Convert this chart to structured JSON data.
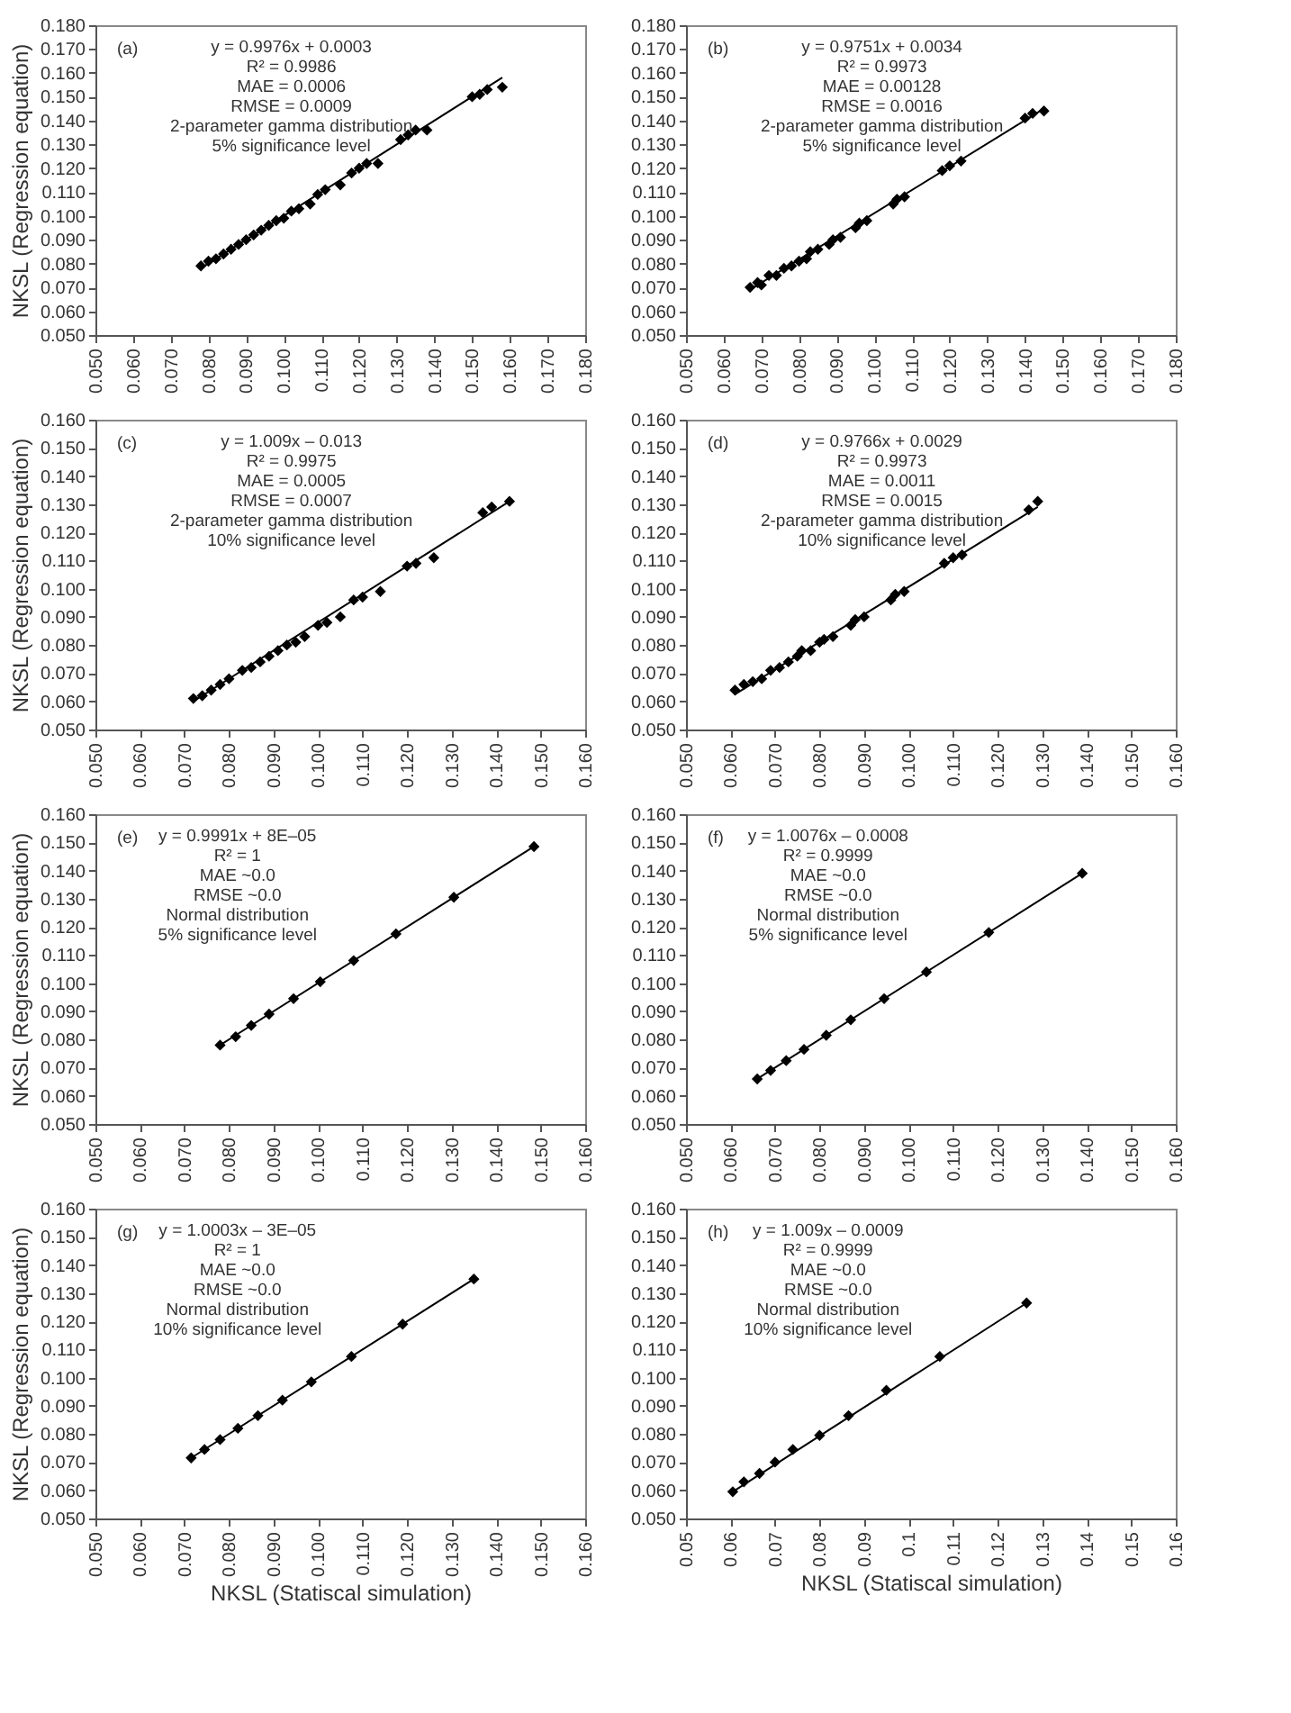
{
  "chart_data": [
    {
      "type": "scatter",
      "ylabel": "NKSL (Regression equation)",
      "annotations": [
        "(a)",
        "y = 0.9976x + 0.0003",
        "R² = 0.9986",
        "MAE = 0.0006",
        "RMSE = 0.0009",
        "2-parameter gamma distribution",
        "5% significance level"
      ],
      "xlim": [
        0.05,
        0.18
      ],
      "ylim": [
        0.05,
        0.18
      ],
      "xticks": [
        {
          "value": 0.05,
          "label": "0.050"
        },
        {
          "value": 0.06,
          "label": "0.060"
        },
        {
          "value": 0.07,
          "label": "0.070"
        },
        {
          "value": 0.08,
          "label": "0.080"
        },
        {
          "value": 0.09,
          "label": "0.090"
        },
        {
          "value": 0.1,
          "label": "0.100"
        },
        {
          "value": 0.11,
          "label": "0.110"
        },
        {
          "value": 0.12,
          "label": "0.120"
        },
        {
          "value": 0.13,
          "label": "0.130"
        },
        {
          "value": 0.14,
          "label": "0.140"
        },
        {
          "value": 0.15,
          "label": "0.150"
        },
        {
          "value": 0.16,
          "label": "0.160"
        },
        {
          "value": 0.17,
          "label": "0.170"
        },
        {
          "value": 0.18,
          "label": "0.180"
        }
      ],
      "yticks": [
        {
          "value": 0.05,
          "label": "0.050"
        },
        {
          "value": 0.06,
          "label": "0.060"
        },
        {
          "value": 0.07,
          "label": "0.070"
        },
        {
          "value": 0.08,
          "label": "0.080"
        },
        {
          "value": 0.09,
          "label": "0.090"
        },
        {
          "value": 0.1,
          "label": "0.100"
        },
        {
          "value": 0.11,
          "label": "0.110"
        },
        {
          "value": 0.12,
          "label": "0.120"
        },
        {
          "value": 0.13,
          "label": "0.130"
        },
        {
          "value": 0.14,
          "label": "0.140"
        },
        {
          "value": 0.15,
          "label": "0.150"
        },
        {
          "value": 0.16,
          "label": "0.160"
        },
        {
          "value": 0.17,
          "label": "0.170"
        },
        {
          "value": 0.18,
          "label": "0.180"
        }
      ],
      "grid": false,
      "series": [
        {
          "type": "scatter",
          "marker": "diamond",
          "color": "#000000",
          "x": [
            0.078,
            0.08,
            0.082,
            0.084,
            0.086,
            0.088,
            0.09,
            0.092,
            0.094,
            0.096,
            0.098,
            0.1,
            0.102,
            0.104,
            0.107,
            0.109,
            0.111,
            0.115,
            0.118,
            0.12,
            0.122,
            0.125,
            0.131,
            0.133,
            0.135,
            0.138,
            0.15,
            0.152,
            0.154,
            0.158
          ],
          "values": [
            0.079,
            0.081,
            0.082,
            0.084,
            0.086,
            0.088,
            0.09,
            0.092,
            0.094,
            0.096,
            0.098,
            0.099,
            0.102,
            0.103,
            0.105,
            0.109,
            0.111,
            0.113,
            0.118,
            0.12,
            0.122,
            0.122,
            0.132,
            0.134,
            0.136,
            0.136,
            0.15,
            0.151,
            0.153,
            0.154
          ]
        },
        {
          "type": "line",
          "line_style": "solid",
          "color": "#000000",
          "x": [
            0.078,
            0.158
          ],
          "values": [
            0.078,
            0.158
          ]
        }
      ]
    },
    {
      "type": "scatter",
      "annotations": [
        "(b)",
        "y = 0.9751x + 0.0034",
        "R² = 0.9973",
        "MAE = 0.00128",
        "RMSE = 0.0016",
        "2-parameter gamma distribution",
        "5% significance level"
      ],
      "xlim": [
        0.05,
        0.18
      ],
      "ylim": [
        0.05,
        0.18
      ],
      "xticks": [
        {
          "value": 0.05,
          "label": "0.050"
        },
        {
          "value": 0.06,
          "label": "0.060"
        },
        {
          "value": 0.07,
          "label": "0.070"
        },
        {
          "value": 0.08,
          "label": "0.080"
        },
        {
          "value": 0.09,
          "label": "0.090"
        },
        {
          "value": 0.1,
          "label": "0.100"
        },
        {
          "value": 0.11,
          "label": "0.110"
        },
        {
          "value": 0.12,
          "label": "0.120"
        },
        {
          "value": 0.13,
          "label": "0.130"
        },
        {
          "value": 0.14,
          "label": "0.140"
        },
        {
          "value": 0.15,
          "label": "0.150"
        },
        {
          "value": 0.16,
          "label": "0.160"
        },
        {
          "value": 0.17,
          "label": "0.170"
        },
        {
          "value": 0.18,
          "label": "0.180"
        }
      ],
      "yticks": [
        {
          "value": 0.05,
          "label": "0.050"
        },
        {
          "value": 0.06,
          "label": "0.060"
        },
        {
          "value": 0.07,
          "label": "0.070"
        },
        {
          "value": 0.08,
          "label": "0.080"
        },
        {
          "value": 0.09,
          "label": "0.090"
        },
        {
          "value": 0.1,
          "label": "0.100"
        },
        {
          "value": 0.11,
          "label": "0.110"
        },
        {
          "value": 0.12,
          "label": "0.120"
        },
        {
          "value": 0.13,
          "label": "0.130"
        },
        {
          "value": 0.14,
          "label": "0.140"
        },
        {
          "value": 0.15,
          "label": "0.150"
        },
        {
          "value": 0.16,
          "label": "0.160"
        },
        {
          "value": 0.17,
          "label": "0.170"
        },
        {
          "value": 0.18,
          "label": "0.180"
        }
      ],
      "grid": false,
      "series": [
        {
          "type": "scatter",
          "marker": "diamond",
          "color": "#000000",
          "x": [
            0.067,
            0.069,
            0.07,
            0.072,
            0.074,
            0.076,
            0.078,
            0.08,
            0.082,
            0.083,
            0.085,
            0.088,
            0.089,
            0.091,
            0.095,
            0.096,
            0.098,
            0.105,
            0.106,
            0.108,
            0.118,
            0.12,
            0.123,
            0.14,
            0.142,
            0.145
          ],
          "values": [
            0.07,
            0.072,
            0.071,
            0.075,
            0.075,
            0.078,
            0.079,
            0.081,
            0.082,
            0.085,
            0.086,
            0.088,
            0.09,
            0.091,
            0.095,
            0.097,
            0.098,
            0.105,
            0.107,
            0.108,
            0.119,
            0.121,
            0.123,
            0.141,
            0.143,
            0.144
          ]
        },
        {
          "type": "line",
          "line_style": "solid",
          "color": "#000000",
          "x": [
            0.067,
            0.145
          ],
          "values": [
            0.069,
            0.145
          ]
        }
      ]
    },
    {
      "type": "scatter",
      "ylabel": "NKSL (Regression equation)",
      "annotations": [
        "(c)",
        "y = 1.009x – 0.013",
        "R² = 0.9975",
        "MAE = 0.0005",
        "RMSE = 0.0007",
        "2-parameter gamma distribution",
        "10% significance level"
      ],
      "xlim": [
        0.05,
        0.16
      ],
      "ylim": [
        0.05,
        0.16
      ],
      "xticks": [
        {
          "value": 0.05,
          "label": "0.050"
        },
        {
          "value": 0.06,
          "label": "0.060"
        },
        {
          "value": 0.07,
          "label": "0.070"
        },
        {
          "value": 0.08,
          "label": "0.080"
        },
        {
          "value": 0.09,
          "label": "0.090"
        },
        {
          "value": 0.1,
          "label": "0.100"
        },
        {
          "value": 0.11,
          "label": "0.110"
        },
        {
          "value": 0.12,
          "label": "0.120"
        },
        {
          "value": 0.13,
          "label": "0.130"
        },
        {
          "value": 0.14,
          "label": "0.140"
        },
        {
          "value": 0.15,
          "label": "0.150"
        },
        {
          "value": 0.16,
          "label": "0.160"
        }
      ],
      "yticks": [
        {
          "value": 0.05,
          "label": "0.050"
        },
        {
          "value": 0.06,
          "label": "0.060"
        },
        {
          "value": 0.07,
          "label": "0.070"
        },
        {
          "value": 0.08,
          "label": "0.080"
        },
        {
          "value": 0.09,
          "label": "0.090"
        },
        {
          "value": 0.1,
          "label": "0.100"
        },
        {
          "value": 0.11,
          "label": "0.110"
        },
        {
          "value": 0.12,
          "label": "0.120"
        },
        {
          "value": 0.13,
          "label": "0.130"
        },
        {
          "value": 0.14,
          "label": "0.140"
        },
        {
          "value": 0.15,
          "label": "0.150"
        },
        {
          "value": 0.16,
          "label": "0.160"
        }
      ],
      "grid": false,
      "series": [
        {
          "type": "scatter",
          "marker": "diamond",
          "color": "#000000",
          "x": [
            0.072,
            0.074,
            0.076,
            0.078,
            0.08,
            0.083,
            0.085,
            0.087,
            0.089,
            0.091,
            0.093,
            0.095,
            0.097,
            0.1,
            0.102,
            0.105,
            0.108,
            0.11,
            0.114,
            0.12,
            0.122,
            0.126,
            0.137,
            0.139,
            0.143
          ],
          "values": [
            0.061,
            0.062,
            0.064,
            0.066,
            0.068,
            0.071,
            0.072,
            0.074,
            0.076,
            0.078,
            0.08,
            0.081,
            0.083,
            0.087,
            0.088,
            0.09,
            0.096,
            0.097,
            0.099,
            0.108,
            0.109,
            0.111,
            0.127,
            0.129,
            0.131
          ]
        },
        {
          "type": "line",
          "line_style": "solid",
          "color": "#000000",
          "x": [
            0.072,
            0.143
          ],
          "values": [
            0.06,
            0.131
          ]
        }
      ]
    },
    {
      "type": "scatter",
      "annotations": [
        "(d)",
        "y = 0.9766x + 0.0029",
        "R² = 0.9973",
        "MAE = 0.0011",
        "RMSE = 0.0015",
        "2-parameter gamma distribution",
        "10% significance level"
      ],
      "xlim": [
        0.05,
        0.16
      ],
      "ylim": [
        0.05,
        0.16
      ],
      "xticks": [
        {
          "value": 0.05,
          "label": "0.050"
        },
        {
          "value": 0.06,
          "label": "0.060"
        },
        {
          "value": 0.07,
          "label": "0.070"
        },
        {
          "value": 0.08,
          "label": "0.080"
        },
        {
          "value": 0.09,
          "label": "0.090"
        },
        {
          "value": 0.1,
          "label": "0.100"
        },
        {
          "value": 0.11,
          "label": "0.110"
        },
        {
          "value": 0.12,
          "label": "0.120"
        },
        {
          "value": 0.13,
          "label": "0.130"
        },
        {
          "value": 0.14,
          "label": "0.140"
        },
        {
          "value": 0.15,
          "label": "0.150"
        },
        {
          "value": 0.16,
          "label": "0.160"
        }
      ],
      "yticks": [
        {
          "value": 0.05,
          "label": "0.050"
        },
        {
          "value": 0.06,
          "label": "0.060"
        },
        {
          "value": 0.07,
          "label": "0.070"
        },
        {
          "value": 0.08,
          "label": "0.080"
        },
        {
          "value": 0.09,
          "label": "0.090"
        },
        {
          "value": 0.1,
          "label": "0.100"
        },
        {
          "value": 0.11,
          "label": "0.110"
        },
        {
          "value": 0.12,
          "label": "0.120"
        },
        {
          "value": 0.13,
          "label": "0.130"
        },
        {
          "value": 0.14,
          "label": "0.140"
        },
        {
          "value": 0.15,
          "label": "0.150"
        },
        {
          "value": 0.16,
          "label": "0.160"
        }
      ],
      "grid": false,
      "series": [
        {
          "type": "scatter",
          "marker": "diamond",
          "color": "#000000",
          "x": [
            0.061,
            0.063,
            0.065,
            0.067,
            0.069,
            0.071,
            0.073,
            0.075,
            0.076,
            0.078,
            0.08,
            0.081,
            0.083,
            0.087,
            0.088,
            0.09,
            0.096,
            0.097,
            0.099,
            0.108,
            0.11,
            0.112,
            0.127,
            0.129
          ],
          "values": [
            0.064,
            0.066,
            0.067,
            0.068,
            0.071,
            0.072,
            0.074,
            0.076,
            0.078,
            0.078,
            0.081,
            0.082,
            0.083,
            0.087,
            0.089,
            0.09,
            0.096,
            0.098,
            0.099,
            0.109,
            0.111,
            0.112,
            0.128,
            0.131
          ]
        },
        {
          "type": "line",
          "line_style": "solid",
          "color": "#000000",
          "x": [
            0.061,
            0.129
          ],
          "values": [
            0.0625,
            0.129
          ]
        }
      ]
    },
    {
      "type": "scatter",
      "ylabel": "NKSL (Regression equation)",
      "annotations": [
        "(e)",
        "y = 0.9991x + 8E–05",
        "R² = 1",
        "MAE ~0.0",
        "RMSE ~0.0",
        "Normal distribution",
        "5% significance level"
      ],
      "xlim": [
        0.05,
        0.16
      ],
      "ylim": [
        0.05,
        0.16
      ],
      "xticks": [
        {
          "value": 0.05,
          "label": "0.050"
        },
        {
          "value": 0.06,
          "label": "0.060"
        },
        {
          "value": 0.07,
          "label": "0.070"
        },
        {
          "value": 0.08,
          "label": "0.080"
        },
        {
          "value": 0.09,
          "label": "0.090"
        },
        {
          "value": 0.1,
          "label": "0.100"
        },
        {
          "value": 0.11,
          "label": "0.110"
        },
        {
          "value": 0.12,
          "label": "0.120"
        },
        {
          "value": 0.13,
          "label": "0.130"
        },
        {
          "value": 0.14,
          "label": "0.140"
        },
        {
          "value": 0.15,
          "label": "0.150"
        },
        {
          "value": 0.16,
          "label": "0.160"
        }
      ],
      "yticks": [
        {
          "value": 0.05,
          "label": "0.050"
        },
        {
          "value": 0.06,
          "label": "0.060"
        },
        {
          "value": 0.07,
          "label": "0.070"
        },
        {
          "value": 0.08,
          "label": "0.080"
        },
        {
          "value": 0.09,
          "label": "0.090"
        },
        {
          "value": 0.1,
          "label": "0.100"
        },
        {
          "value": 0.11,
          "label": "0.110"
        },
        {
          "value": 0.12,
          "label": "0.120"
        },
        {
          "value": 0.13,
          "label": "0.130"
        },
        {
          "value": 0.14,
          "label": "0.140"
        },
        {
          "value": 0.15,
          "label": "0.150"
        },
        {
          "value": 0.16,
          "label": "0.160"
        }
      ],
      "grid": false,
      "series": [
        {
          "type": "scatter",
          "marker": "diamond",
          "color": "#000000",
          "x": [
            0.078,
            0.0815,
            0.085,
            0.089,
            0.0945,
            0.1005,
            0.108,
            0.1175,
            0.1305,
            0.1485
          ],
          "values": [
            0.078,
            0.081,
            0.085,
            0.089,
            0.0945,
            0.1005,
            0.108,
            0.1175,
            0.1305,
            0.1485
          ]
        },
        {
          "type": "line",
          "line_style": "solid",
          "color": "#000000",
          "x": [
            0.078,
            0.1485
          ],
          "values": [
            0.078,
            0.1485
          ]
        }
      ]
    },
    {
      "type": "scatter",
      "annotations": [
        "(f)",
        "y = 1.0076x – 0.0008",
        "R² = 0.9999",
        "MAE ~0.0",
        "RMSE ~0.0",
        "Normal distribution",
        "5% significance level"
      ],
      "xlim": [
        0.05,
        0.16
      ],
      "ylim": [
        0.05,
        0.16
      ],
      "xticks": [
        {
          "value": 0.05,
          "label": "0.050"
        },
        {
          "value": 0.06,
          "label": "0.060"
        },
        {
          "value": 0.07,
          "label": "0.070"
        },
        {
          "value": 0.08,
          "label": "0.080"
        },
        {
          "value": 0.09,
          "label": "0.090"
        },
        {
          "value": 0.1,
          "label": "0.100"
        },
        {
          "value": 0.11,
          "label": "0.110"
        },
        {
          "value": 0.12,
          "label": "0.120"
        },
        {
          "value": 0.13,
          "label": "0.130"
        },
        {
          "value": 0.14,
          "label": "0.140"
        },
        {
          "value": 0.15,
          "label": "0.150"
        },
        {
          "value": 0.16,
          "label": "0.160"
        }
      ],
      "yticks": [
        {
          "value": 0.05,
          "label": "0.050"
        },
        {
          "value": 0.06,
          "label": "0.060"
        },
        {
          "value": 0.07,
          "label": "0.070"
        },
        {
          "value": 0.08,
          "label": "0.080"
        },
        {
          "value": 0.09,
          "label": "0.090"
        },
        {
          "value": 0.1,
          "label": "0.100"
        },
        {
          "value": 0.11,
          "label": "0.110"
        },
        {
          "value": 0.12,
          "label": "0.120"
        },
        {
          "value": 0.13,
          "label": "0.130"
        },
        {
          "value": 0.14,
          "label": "0.140"
        },
        {
          "value": 0.15,
          "label": "0.150"
        },
        {
          "value": 0.16,
          "label": "0.160"
        }
      ],
      "grid": false,
      "series": [
        {
          "type": "scatter",
          "marker": "diamond",
          "color": "#000000",
          "x": [
            0.066,
            0.069,
            0.0725,
            0.0765,
            0.0815,
            0.087,
            0.0945,
            0.104,
            0.118,
            0.139
          ],
          "values": [
            0.066,
            0.069,
            0.0725,
            0.0765,
            0.0815,
            0.087,
            0.0945,
            0.104,
            0.118,
            0.139
          ]
        },
        {
          "type": "line",
          "line_style": "solid",
          "color": "#000000",
          "x": [
            0.066,
            0.139
          ],
          "values": [
            0.066,
            0.139
          ]
        }
      ]
    },
    {
      "type": "scatter",
      "xlabel": "NKSL (Statiscal simulation)",
      "ylabel": "NKSL (Regression equation)",
      "annotations": [
        "(g)",
        "y = 1.0003x – 3E–05",
        "R² = 1",
        "MAE ~0.0",
        "RMSE ~0.0",
        "Normal distribution",
        "10% significance level"
      ],
      "xlim": [
        0.05,
        0.16
      ],
      "ylim": [
        0.05,
        0.16
      ],
      "xticks": [
        {
          "value": 0.05,
          "label": "0.050"
        },
        {
          "value": 0.06,
          "label": "0.060"
        },
        {
          "value": 0.07,
          "label": "0.070"
        },
        {
          "value": 0.08,
          "label": "0.080"
        },
        {
          "value": 0.09,
          "label": "0.090"
        },
        {
          "value": 0.1,
          "label": "0.100"
        },
        {
          "value": 0.11,
          "label": "0.110"
        },
        {
          "value": 0.12,
          "label": "0.120"
        },
        {
          "value": 0.13,
          "label": "0.130"
        },
        {
          "value": 0.14,
          "label": "0.140"
        },
        {
          "value": 0.15,
          "label": "0.150"
        },
        {
          "value": 0.16,
          "label": "0.160"
        }
      ],
      "yticks": [
        {
          "value": 0.05,
          "label": "0.050"
        },
        {
          "value": 0.06,
          "label": "0.060"
        },
        {
          "value": 0.07,
          "label": "0.070"
        },
        {
          "value": 0.08,
          "label": "0.080"
        },
        {
          "value": 0.09,
          "label": "0.090"
        },
        {
          "value": 0.1,
          "label": "0.100"
        },
        {
          "value": 0.11,
          "label": "0.110"
        },
        {
          "value": 0.12,
          "label": "0.120"
        },
        {
          "value": 0.13,
          "label": "0.130"
        },
        {
          "value": 0.14,
          "label": "0.140"
        },
        {
          "value": 0.15,
          "label": "0.150"
        },
        {
          "value": 0.16,
          "label": "0.160"
        }
      ],
      "grid": false,
      "series": [
        {
          "type": "scatter",
          "marker": "diamond",
          "color": "#000000",
          "x": [
            0.0715,
            0.0745,
            0.078,
            0.082,
            0.0865,
            0.092,
            0.0985,
            0.1075,
            0.119,
            0.135
          ],
          "values": [
            0.0715,
            0.0745,
            0.078,
            0.082,
            0.0865,
            0.092,
            0.0985,
            0.1075,
            0.119,
            0.135
          ]
        },
        {
          "type": "line",
          "line_style": "solid",
          "color": "#000000",
          "x": [
            0.0715,
            0.135
          ],
          "values": [
            0.0715,
            0.135
          ]
        }
      ]
    },
    {
      "type": "scatter",
      "xlabel": "NKSL (Statiscal simulation)",
      "annotations": [
        "(h)",
        "y = 1.009x – 0.0009",
        "R² = 0.9999",
        "MAE ~0.0",
        "RMSE ~0.0",
        "Normal distribution",
        "10% significance level"
      ],
      "xlim": [
        0.05,
        0.16
      ],
      "ylim": [
        0.05,
        0.16
      ],
      "xticks": [
        0.05,
        0.06,
        0.07,
        0.08,
        0.09,
        0.1,
        0.11,
        0.12,
        0.13,
        0.14,
        0.15,
        0.16
      ],
      "yticks": [
        {
          "value": 0.05,
          "label": "0.050"
        },
        {
          "value": 0.06,
          "label": "0.060"
        },
        {
          "value": 0.07,
          "label": "0.070"
        },
        {
          "value": 0.08,
          "label": "0.080"
        },
        {
          "value": 0.09,
          "label": "0.090"
        },
        {
          "value": 0.1,
          "label": "0.100"
        },
        {
          "value": 0.11,
          "label": "0.110"
        },
        {
          "value": 0.12,
          "label": "0.120"
        },
        {
          "value": 0.13,
          "label": "0.130"
        },
        {
          "value": 0.14,
          "label": "0.140"
        },
        {
          "value": 0.15,
          "label": "0.150"
        },
        {
          "value": 0.16,
          "label": "0.160"
        }
      ],
      "grid": false,
      "series": [
        {
          "type": "scatter",
          "marker": "diamond",
          "color": "#000000",
          "x": [
            0.0605,
            0.063,
            0.0665,
            0.07,
            0.074,
            0.08,
            0.0865,
            0.095,
            0.107,
            0.1265
          ],
          "values": [
            0.0595,
            0.063,
            0.066,
            0.07,
            0.0745,
            0.0795,
            0.0865,
            0.0955,
            0.1075,
            0.1265
          ]
        },
        {
          "type": "line",
          "line_style": "solid",
          "color": "#000000",
          "x": [
            0.0605,
            0.1265
          ],
          "values": [
            0.0595,
            0.1265
          ]
        }
      ]
    }
  ]
}
